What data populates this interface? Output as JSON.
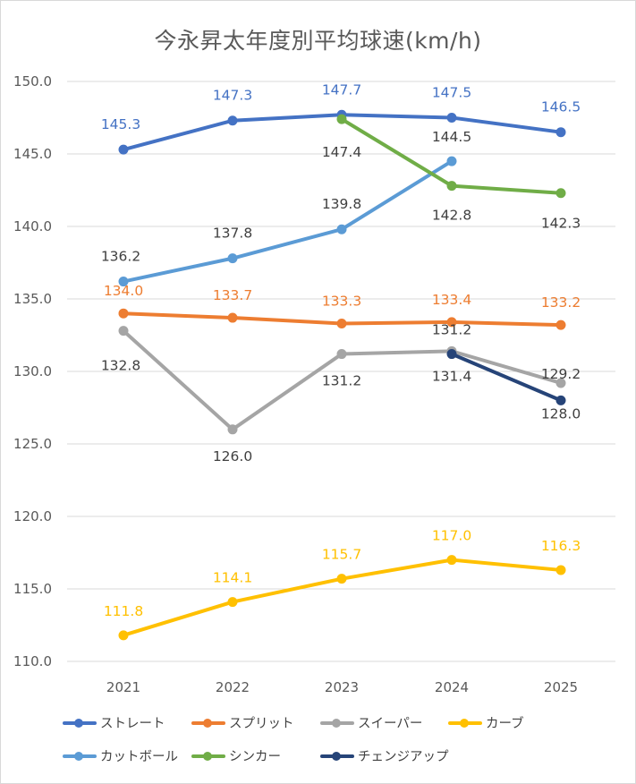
{
  "chart_data": {
    "type": "line",
    "title": "今永昇太年度別平均球速(km/h)",
    "categories": [
      "2021",
      "2022",
      "2023",
      "2024",
      "2025"
    ],
    "ylim": [
      110,
      150
    ],
    "yticks": [
      "110.0",
      "115.0",
      "120.0",
      "125.0",
      "130.0",
      "135.0",
      "140.0",
      "145.0",
      "150.0"
    ],
    "grid": true,
    "legend_position": "bottom",
    "series": [
      {
        "name": "ストレート",
        "color": "#4472C4",
        "values": [
          145.3,
          147.3,
          147.7,
          147.5,
          146.5
        ],
        "labels": [
          "145.3",
          "147.3",
          "147.7",
          "147.5",
          "146.5"
        ],
        "label_color": "#4472C4"
      },
      {
        "name": "スプリット",
        "color": "#ED7D31",
        "values": [
          134.0,
          133.7,
          133.3,
          133.4,
          133.2
        ],
        "labels": [
          "134.0",
          "133.7",
          "133.3",
          "133.4",
          "133.2"
        ],
        "label_color": "#ED7D31"
      },
      {
        "name": "スイーパー",
        "color": "#A5A5A5",
        "values": [
          132.8,
          126.0,
          131.2,
          131.4,
          129.2
        ],
        "labels": [
          "132.8",
          "126.0",
          "131.2",
          "131.4",
          "129.2"
        ],
        "label_color": "#404040"
      },
      {
        "name": "カーブ",
        "color": "#FFC000",
        "values": [
          111.8,
          114.1,
          115.7,
          117.0,
          116.3
        ],
        "labels": [
          "111.8",
          "114.1",
          "115.7",
          "117.0",
          "116.3"
        ],
        "label_color": "#FFC000"
      },
      {
        "name": "カットボール",
        "color": "#5B9BD5",
        "values": [
          136.2,
          137.8,
          139.8,
          144.5,
          null
        ],
        "labels": [
          "136.2",
          "137.8",
          "139.8",
          "144.5",
          ""
        ],
        "label_color": "#404040"
      },
      {
        "name": "シンカー",
        "color": "#70AD47",
        "values": [
          null,
          null,
          147.4,
          142.8,
          142.3
        ],
        "labels": [
          "",
          "",
          "147.4",
          "142.8",
          "142.3"
        ],
        "label_color": "#404040"
      },
      {
        "name": "チェンジアップ",
        "color": "#264478",
        "values": [
          null,
          null,
          null,
          131.2,
          128.0
        ],
        "labels": [
          "",
          "",
          "",
          "131.2",
          "128.0"
        ],
        "label_color": "#404040"
      }
    ]
  }
}
